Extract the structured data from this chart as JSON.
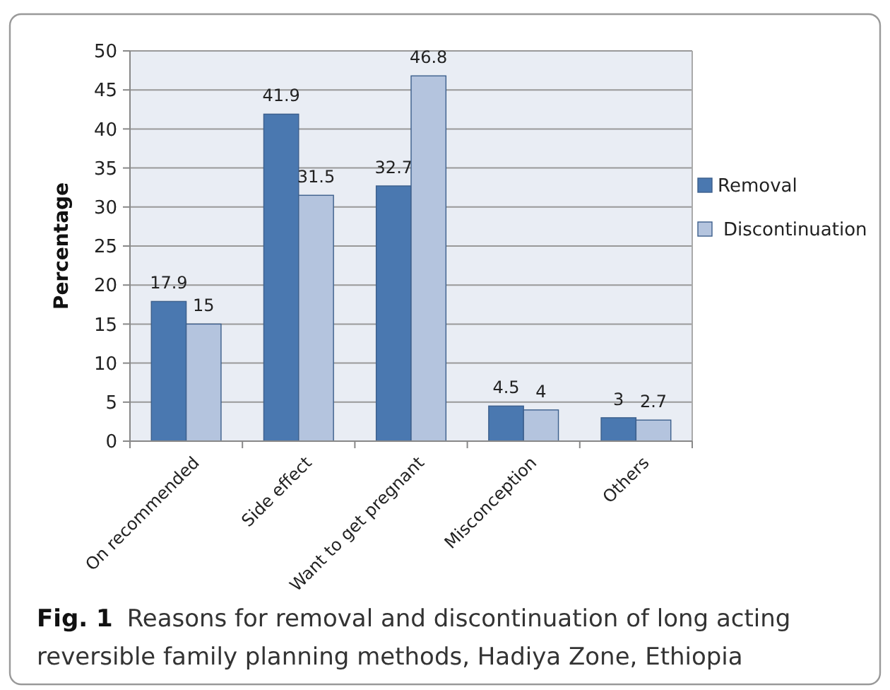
{
  "chart_data": {
    "type": "bar",
    "ylabel": "Percentage",
    "categories": [
      "On recommended",
      "Side effect",
      "Want to get pregnant",
      "Misconception",
      "Others"
    ],
    "series": [
      {
        "name": "Removal",
        "color": "#4a78b0",
        "values": [
          17.9,
          41.9,
          32.7,
          4.5,
          3
        ]
      },
      {
        "name": "Discontinuation",
        "color": "#b4c4de",
        "values": [
          15,
          31.5,
          46.8,
          4,
          2.7
        ]
      }
    ],
    "ylim": [
      0,
      50
    ],
    "yticks": [
      0,
      5,
      10,
      15,
      20,
      25,
      30,
      35,
      40,
      45,
      50
    ],
    "grid": "y",
    "legend": "right",
    "data_labels": true,
    "annotations": [
      "Fig. 1",
      "Reasons for removal and discontinuation of long acting reversible family planning methods, Hadiya Zone, Ethiopia"
    ]
  }
}
